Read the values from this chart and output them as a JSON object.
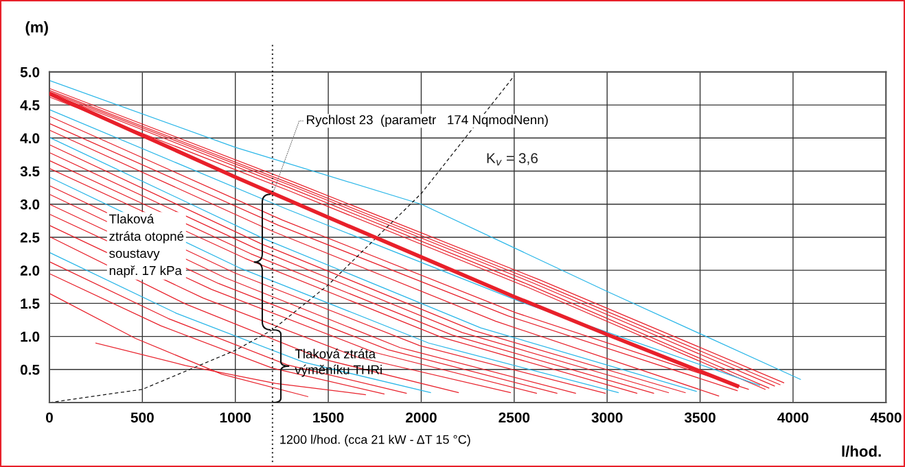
{
  "chart_data": {
    "type": "line",
    "xlabel": "l/hod.",
    "ylabel": "(m)",
    "xlim": [
      0,
      4500
    ],
    "ylim": [
      0,
      5
    ],
    "xticks": [
      0,
      500,
      1000,
      1500,
      2000,
      2500,
      3000,
      3500,
      4000,
      4500
    ],
    "yticks": [
      {
        "value": 0.5,
        "label": "0.5"
      },
      {
        "value": 1,
        "label": "1.0"
      },
      {
        "value": 1.5,
        "label": "1.5"
      },
      {
        "value": 2,
        "label": "2.0"
      },
      {
        "value": 2.5,
        "label": "2.5"
      },
      {
        "value": 3,
        "label": "3.0"
      },
      {
        "value": 3.5,
        "label": "3.5"
      },
      {
        "value": 4,
        "label": "4.0"
      },
      {
        "value": 4.5,
        "label": "4.5"
      },
      {
        "value": 5,
        "label": "5.0"
      }
    ],
    "grid": true,
    "legend": false,
    "marker": "none",
    "ref_lines": [
      {
        "axis": "x",
        "value": 1200,
        "label": "1200 l/hod. (cca 21 kW - ΔT 15 °C)",
        "line_style": "dotted",
        "color": "#222222"
      }
    ],
    "annotations": [
      {
        "text": "Rychlost 23  (parametr   174 NqmodNenn)",
        "x": 1200,
        "y": 3.15
      },
      "Tlaková\nztráta otopné\nsoustavy\nnapř. 17 kPa",
      "Tlaková ztráta\nvýměníku THRi"
    ],
    "series": [
      {
        "color": "#29b6e8",
        "x": [
          0,
          1000,
          2000,
          3000,
          4040
        ],
        "values": [
          4.87,
          3.86,
          3.0,
          1.68,
          0.35
        ]
      },
      {
        "color": "#e8202a",
        "x": [
          0,
          1317,
          2633,
          3950
        ],
        "values": [
          4.75,
          3.33,
          1.86,
          0.3
        ]
      },
      {
        "color": "#e8202a",
        "x": [
          0,
          1310,
          2620,
          3930
        ],
        "values": [
          4.72,
          3.3,
          1.83,
          0.27
        ]
      },
      {
        "color": "#e8202a",
        "x": [
          0,
          1300,
          2600,
          3900
        ],
        "values": [
          4.7,
          3.28,
          1.81,
          0.25
        ]
      },
      {
        "color": "#e8202a",
        "x": [
          0,
          1290,
          2580,
          3870
        ],
        "values": [
          4.68,
          3.25,
          1.78,
          0.22
        ]
      },
      {
        "color": "#e8202a",
        "x": [
          0,
          1283,
          2567,
          3850
        ],
        "values": [
          4.62,
          3.21,
          1.75,
          0.2
        ]
      },
      {
        "color": "#29b6e8",
        "x": [
          0,
          1273,
          2547,
          3820
        ],
        "values": [
          4.43,
          2.93,
          1.51,
          0.26
        ]
      },
      {
        "color": "#e8202a",
        "x": [
          0,
          1253,
          2507,
          3760
        ],
        "values": [
          4.33,
          2.76,
          1.36,
          0.2
        ]
      },
      {
        "color": "#e8202a",
        "x": [
          0,
          1233,
          2467,
          3700
        ],
        "values": [
          4.22,
          2.68,
          1.31,
          0.18
        ]
      },
      {
        "color": "#e8202a",
        "x": [
          0,
          1200,
          2400,
          3600
        ],
        "values": [
          4.12,
          2.59,
          1.23,
          0.1
        ]
      },
      {
        "color": "#29b6e8",
        "x": [
          0,
          1160,
          2320,
          3480
        ],
        "values": [
          4.01,
          2.47,
          1.13,
          0.17
        ]
      },
      {
        "color": "#e8202a",
        "x": [
          0,
          1140,
          2280,
          3420
        ],
        "values": [
          3.9,
          2.4,
          1.09,
          0.15
        ]
      },
      {
        "color": "#e8202a",
        "x": [
          0,
          1110,
          2220,
          3330
        ],
        "values": [
          3.78,
          2.33,
          1.06,
          0.15
        ]
      },
      {
        "color": "#e8202a",
        "x": [
          0,
          1083,
          2167,
          3250
        ],
        "values": [
          3.66,
          2.25,
          1.02,
          0.14
        ]
      },
      {
        "color": "#e8202a",
        "x": [
          0,
          1053,
          2107,
          3160
        ],
        "values": [
          3.54,
          2.18,
          0.99,
          0.14
        ]
      },
      {
        "color": "#29b6e8",
        "x": [
          0,
          1020,
          2040,
          3060
        ],
        "values": [
          3.41,
          2.04,
          0.9,
          0.15
        ]
      },
      {
        "color": "#e8202a",
        "x": [
          0,
          997,
          1993,
          2990
        ],
        "values": [
          3.28,
          1.96,
          0.86,
          0.14
        ]
      },
      {
        "color": "#e8202a",
        "x": [
          0,
          943,
          1887,
          2830
        ],
        "values": [
          3.15,
          1.89,
          0.83,
          0.14
        ]
      },
      {
        "color": "#e8202a",
        "x": [
          0,
          910,
          1820,
          2730
        ],
        "values": [
          3.0,
          1.8,
          0.8,
          0.14
        ]
      },
      {
        "color": "#e8202a",
        "x": [
          0,
          873,
          1747,
          2620
        ],
        "values": [
          2.85,
          1.71,
          0.76,
          0.14
        ]
      },
      {
        "color": "#e8202a",
        "x": [
          0,
          827,
          1653,
          2480
        ],
        "values": [
          2.68,
          1.58,
          0.69,
          0.15
        ]
      },
      {
        "color": "#e8202a",
        "x": [
          0,
          733,
          1467,
          2200
        ],
        "values": [
          2.51,
          1.49,
          0.66,
          0.15
        ]
      },
      {
        "color": "#29b6e8",
        "x": [
          0,
          683,
          1367,
          2050
        ],
        "values": [
          2.27,
          1.35,
          0.61,
          0.15
        ]
      },
      {
        "color": "#e8202a",
        "x": [
          0,
          640,
          1280,
          1920
        ],
        "values": [
          2.13,
          1.27,
          0.57,
          0.14
        ]
      },
      {
        "color": "#e8202a",
        "x": [
          0,
          600,
          1200,
          1800
        ],
        "values": [
          1.95,
          1.16,
          0.52,
          0.13
        ]
      },
      {
        "color": "#e8202a",
        "x": [
          0,
          463,
          927,
          1390
        ],
        "values": [
          1.65,
          0.97,
          0.43,
          0.09
        ]
      },
      {
        "color": "#e8202a",
        "x": [
          250,
          733,
          1217,
          1700
        ],
        "values": [
          0.9,
          0.56,
          0.29,
          0.12
        ]
      },
      {
        "color": "#e8202a",
        "x": [
          0,
          500,
          1000,
          1500,
          2000,
          2500,
          3000,
          3700
        ],
        "values": [
          4.67,
          4.04,
          3.41,
          2.8,
          2.2,
          1.6,
          1.03,
          0.25
        ]
      },
      {
        "name": "K$_{v}$ = 3,6",
        "color": "#111111",
        "line_style": "dashed",
        "x": [
          0,
          500,
          1000,
          1200,
          1500,
          2000,
          2500
        ],
        "values": [
          0,
          0.2,
          0.79,
          1.1,
          1.78,
          3.16,
          4.94
        ]
      }
    ]
  }
}
